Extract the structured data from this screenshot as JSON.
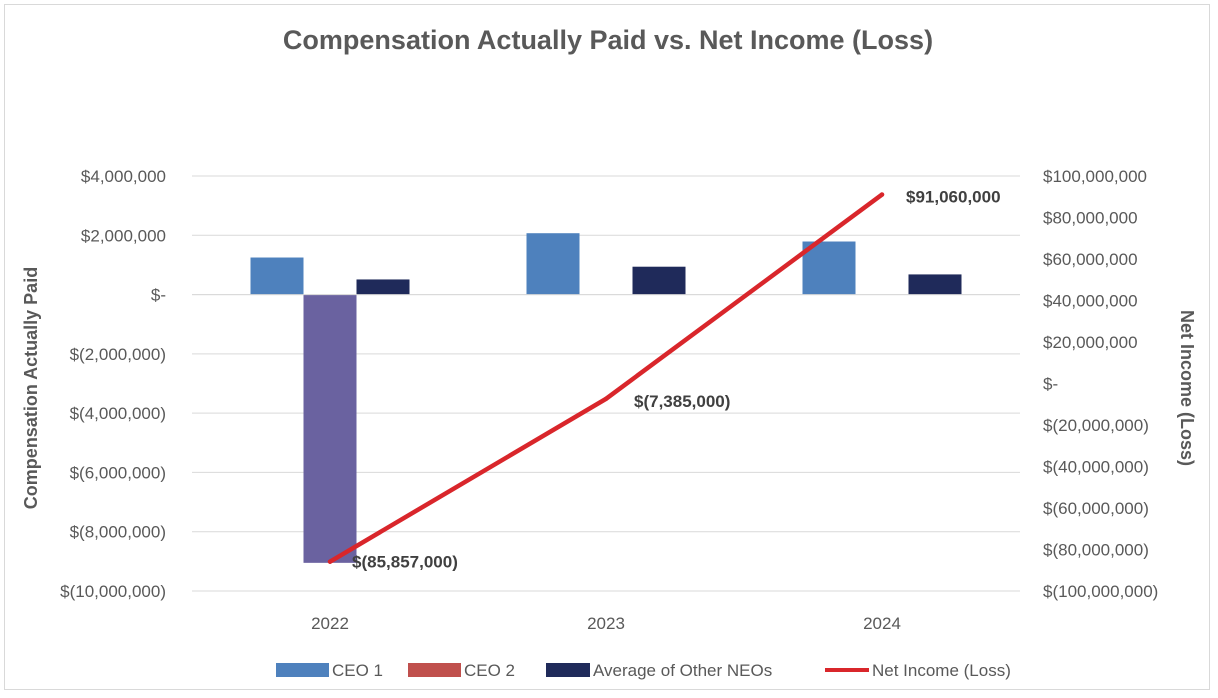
{
  "chart_data": {
    "type": "bar",
    "title": "Compensation Actually Paid vs. Net Income (Loss)",
    "categories": [
      "2022",
      "2023",
      "2024"
    ],
    "y_left": {
      "label": "Compensation Actually Paid",
      "range": [
        -10000000,
        4000000
      ],
      "step": 2000000,
      "tick_labels": [
        "$(10,000,000)",
        "$(8,000,000)",
        "$(6,000,000)",
        "$(4,000,000)",
        "$(2,000,000)",
        "$-",
        "$2,000,000",
        "$4,000,000"
      ]
    },
    "y_right": {
      "label": "Net Income (Loss)",
      "range": [
        -100000000,
        100000000
      ],
      "step": 20000000,
      "tick_labels": [
        "$(100,000,000)",
        "$(80,000,000)",
        "$(60,000,000)",
        "$(40,000,000)",
        "$(20,000,000)",
        "$-",
        "$20,000,000",
        "$40,000,000",
        "$60,000,000",
        "$80,000,000",
        "$100,000,000"
      ]
    },
    "series": [
      {
        "name": "CEO 1",
        "kind": "bar",
        "axis": "left",
        "color": "#4e81bd",
        "values": [
          1250000,
          2070000,
          1790000
        ]
      },
      {
        "name": "CEO 2",
        "kind": "bar",
        "axis": "left",
        "color": "#6a62a0",
        "legend_color": "#c0504d",
        "values": [
          -9050000,
          null,
          null
        ]
      },
      {
        "name": "Average of Other NEOs",
        "kind": "bar",
        "axis": "left",
        "color": "#1f2a5a",
        "values": [
          510000,
          940000,
          680000
        ]
      },
      {
        "name": "Net Income (Loss)",
        "kind": "line",
        "axis": "right",
        "color": "#d9262b",
        "values": [
          -85857000,
          -7385000,
          91060000
        ],
        "data_labels": [
          "$(85,857,000)",
          "$(7,385,000)",
          "$91,060,000"
        ]
      }
    ],
    "legend_position": "bottom",
    "grid": true
  }
}
